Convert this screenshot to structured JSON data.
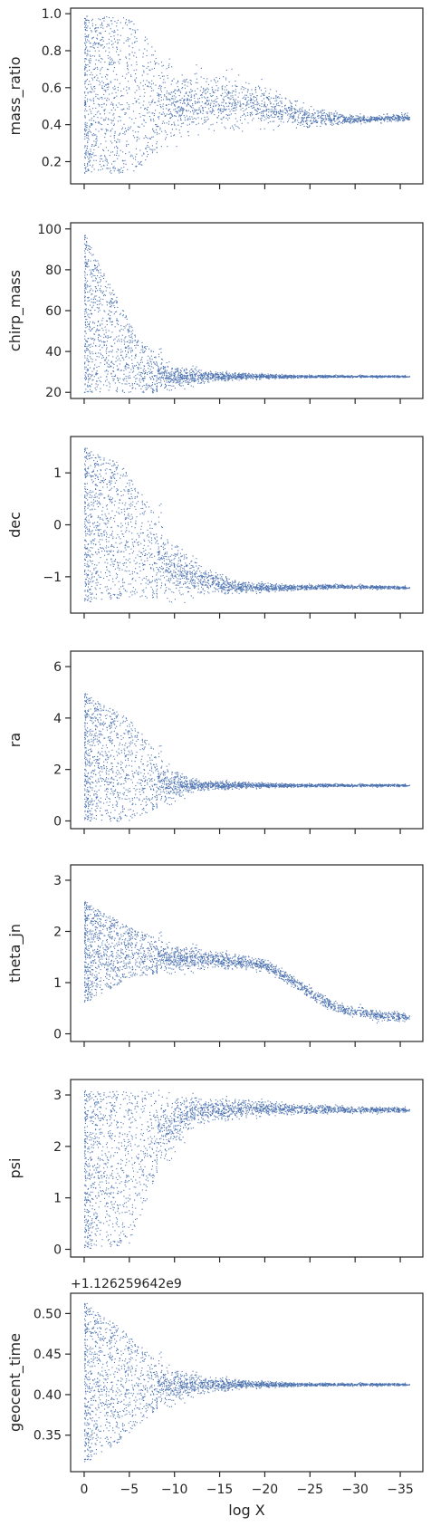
{
  "colors": {
    "points": "#4c72b0",
    "axes": "#262626",
    "background": "#ffffff"
  },
  "chart_data": {
    "type": "scatter",
    "xlabel": "log X",
    "xlim": [
      1.5,
      -37.5
    ],
    "x_ticks": [
      0,
      -5,
      -10,
      -15,
      -20,
      -25,
      -30,
      -35
    ],
    "x_tick_labels": [
      "0",
      "−5",
      "−10",
      "−15",
      "−20",
      "−25",
      "−30",
      "−35"
    ],
    "panels": [
      {
        "ylabel": "mass_ratio",
        "ylim": [
          0.08,
          1.03
        ],
        "y_ticks": [
          0.2,
          0.4,
          0.6,
          0.8,
          1.0
        ],
        "y_tick_labels": [
          "0.2",
          "0.4",
          "0.6",
          "0.8",
          "1.0"
        ],
        "centerline": [
          [
            0,
            0.56
          ],
          [
            -5,
            0.56
          ],
          [
            -10,
            0.51
          ],
          [
            -15,
            0.53
          ],
          [
            -20,
            0.5
          ],
          [
            -25,
            0.44
          ],
          [
            -30,
            0.43
          ],
          [
            -35,
            0.44
          ]
        ],
        "spread": [
          [
            0,
            0.43
          ],
          [
            -5,
            0.43
          ],
          [
            -10,
            0.18
          ],
          [
            -15,
            0.13
          ],
          [
            -20,
            0.1
          ],
          [
            -25,
            0.05
          ],
          [
            -30,
            0.02
          ],
          [
            -35,
            0.02
          ]
        ],
        "clip": [
          0.14,
          1.0
        ]
      },
      {
        "ylabel": "chirp_mass",
        "ylim": [
          17,
          103
        ],
        "y_ticks": [
          20,
          40,
          60,
          80,
          100
        ],
        "y_tick_labels": [
          "20",
          "40",
          "60",
          "80",
          "100"
        ],
        "centerline": [
          [
            0,
            58
          ],
          [
            -3,
            42
          ],
          [
            -6,
            32
          ],
          [
            -10,
            28
          ],
          [
            -15,
            28
          ],
          [
            -20,
            28
          ],
          [
            -25,
            28
          ],
          [
            -30,
            28
          ],
          [
            -35,
            28
          ]
        ],
        "spread": [
          [
            0,
            40
          ],
          [
            -3,
            30
          ],
          [
            -6,
            14
          ],
          [
            -10,
            5
          ],
          [
            -15,
            2
          ],
          [
            -20,
            1
          ],
          [
            -25,
            0.7
          ],
          [
            -30,
            0.5
          ],
          [
            -35,
            0.5
          ]
        ],
        "clip": [
          20,
          100
        ]
      },
      {
        "ylabel": "dec",
        "ylim": [
          -1.7,
          1.7
        ],
        "y_ticks": [
          -1,
          0,
          1
        ],
        "y_tick_labels": [
          "−1",
          "0",
          "1"
        ],
        "centerline": [
          [
            0,
            0.0
          ],
          [
            -4,
            -0.1
          ],
          [
            -8,
            -0.6
          ],
          [
            -12,
            -1.0
          ],
          [
            -17,
            -1.2
          ],
          [
            -22,
            -1.2
          ],
          [
            -28,
            -1.18
          ],
          [
            -35,
            -1.2
          ]
        ],
        "spread": [
          [
            0,
            1.5
          ],
          [
            -4,
            1.3
          ],
          [
            -8,
            0.8
          ],
          [
            -12,
            0.3
          ],
          [
            -17,
            0.1
          ],
          [
            -22,
            0.06
          ],
          [
            -28,
            0.04
          ],
          [
            -35,
            0.03
          ]
        ],
        "clip": [
          -1.57,
          1.57
        ]
      },
      {
        "ylabel": "ra",
        "ylim": [
          -0.3,
          6.6
        ],
        "y_ticks": [
          0,
          2,
          4,
          6
        ],
        "y_tick_labels": [
          "0",
          "2",
          "4",
          "6"
        ],
        "centerline": [
          [
            0,
            2.5
          ],
          [
            -5,
            2.0
          ],
          [
            -9,
            1.5
          ],
          [
            -12,
            1.4
          ],
          [
            -20,
            1.4
          ],
          [
            -30,
            1.4
          ],
          [
            -35,
            1.4
          ]
        ],
        "spread": [
          [
            0,
            2.5
          ],
          [
            -5,
            2.0
          ],
          [
            -9,
            0.8
          ],
          [
            -12,
            0.2
          ],
          [
            -20,
            0.08
          ],
          [
            -30,
            0.05
          ],
          [
            -35,
            0.05
          ]
        ],
        "clip": [
          0,
          6.28
        ]
      },
      {
        "ylabel": "theta_jn",
        "ylim": [
          -0.15,
          3.3
        ],
        "y_ticks": [
          0,
          1,
          2,
          3
        ],
        "y_tick_labels": [
          "0",
          "1",
          "2",
          "3"
        ],
        "centerline": [
          [
            0,
            1.6
          ],
          [
            -5,
            1.6
          ],
          [
            -10,
            1.5
          ],
          [
            -15,
            1.45
          ],
          [
            -20,
            1.35
          ],
          [
            -23,
            1.05
          ],
          [
            -26,
            0.7
          ],
          [
            -28,
            0.5
          ],
          [
            -30,
            0.45
          ],
          [
            -33,
            0.35
          ]
        ],
        "spread": [
          [
            0,
            1.0
          ],
          [
            -5,
            0.5
          ],
          [
            -10,
            0.25
          ],
          [
            -15,
            0.15
          ],
          [
            -20,
            0.1
          ],
          [
            -25,
            0.12
          ],
          [
            -28,
            0.1
          ],
          [
            -33,
            0.1
          ]
        ],
        "clip": [
          0,
          3.14
        ]
      },
      {
        "ylabel": "psi",
        "ylim": [
          -0.15,
          3.3
        ],
        "y_ticks": [
          0,
          1,
          2,
          3
        ],
        "y_tick_labels": [
          "0",
          "1",
          "2",
          "3"
        ],
        "centerline": [
          [
            0,
            1.55
          ],
          [
            -5,
            1.6
          ],
          [
            -8,
            2.3
          ],
          [
            -12,
            2.7
          ],
          [
            -20,
            2.75
          ],
          [
            -30,
            2.72
          ],
          [
            -35,
            2.72
          ]
        ],
        "spread": [
          [
            0,
            1.55
          ],
          [
            -5,
            1.5
          ],
          [
            -8,
            0.8
          ],
          [
            -12,
            0.25
          ],
          [
            -20,
            0.12
          ],
          [
            -30,
            0.06
          ],
          [
            -35,
            0.05
          ]
        ],
        "clip": [
          0,
          3.14
        ]
      },
      {
        "ylabel": "geocent_time",
        "offset_text": "+1.126259642e9",
        "ylim": [
          0.305,
          0.525
        ],
        "y_ticks": [
          0.35,
          0.4,
          0.45,
          0.5
        ],
        "y_tick_labels": [
          "0.35",
          "0.40",
          "0.45",
          "0.50"
        ],
        "centerline": [
          [
            0,
            0.415
          ],
          [
            -5,
            0.413
          ],
          [
            -10,
            0.413
          ],
          [
            -15,
            0.413
          ],
          [
            -20,
            0.413
          ],
          [
            -30,
            0.413
          ],
          [
            -35,
            0.413
          ]
        ],
        "spread": [
          [
            0,
            0.1
          ],
          [
            -4,
            0.07
          ],
          [
            -8,
            0.03
          ],
          [
            -12,
            0.012
          ],
          [
            -18,
            0.004
          ],
          [
            -25,
            0.002
          ],
          [
            -35,
            0.0015
          ]
        ],
        "clip": [
          0.313,
          0.513
        ]
      }
    ]
  }
}
